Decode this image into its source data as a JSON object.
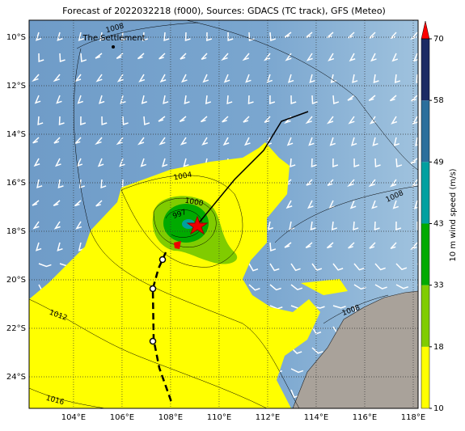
{
  "title": "Forecast of 2022032218 (f000), Sources: GDACS (TC track), GFS (Meteo)",
  "map": {
    "lat_lim": [
      -9.3,
      -25.3
    ],
    "lon_lim": [
      102.17,
      118.2
    ],
    "lat_ticks": [
      {
        "value": -10,
        "label": "10°S"
      },
      {
        "value": -12,
        "label": "12°S"
      },
      {
        "value": -14,
        "label": "14°S"
      },
      {
        "value": -16,
        "label": "16°S"
      },
      {
        "value": -18,
        "label": "18°S"
      },
      {
        "value": -20,
        "label": "20°S"
      },
      {
        "value": -22,
        "label": "22°S"
      },
      {
        "value": -24,
        "label": "24°S"
      }
    ],
    "lon_ticks": [
      {
        "value": 104,
        "label": "104°E"
      },
      {
        "value": 106,
        "label": "106°E"
      },
      {
        "value": 108,
        "label": "108°E"
      },
      {
        "value": 110,
        "label": "110°E"
      },
      {
        "value": 112,
        "label": "112°E"
      },
      {
        "value": 114,
        "label": "114°E"
      },
      {
        "value": 116,
        "label": "116°E"
      },
      {
        "value": 118,
        "label": "118°E"
      }
    ],
    "place": "The Settlement",
    "isobar_labels": [
      "1008",
      "1004",
      "1000",
      "997",
      "1008",
      "1012",
      "1016",
      "1008"
    ]
  },
  "colorbar": {
    "label": "10 m wind speed (m/s)",
    "ticks": [
      10,
      18,
      33,
      43,
      49,
      58,
      70
    ],
    "colors": [
      "#ffff00",
      "#80cc00",
      "#00aa00",
      "#00a0a0",
      "#2b6f9c",
      "#1c2b64"
    ],
    "over_color": "#ff0000"
  }
}
